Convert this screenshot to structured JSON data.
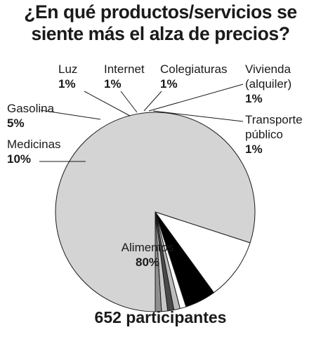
{
  "title_lines": [
    "¿En qué productos/servicios se",
    "siente más el alza de precios?"
  ],
  "footer": "652 participantes",
  "chart_data": {
    "type": "pie",
    "title": "¿En qué productos/servicios se siente más el alza de precios?",
    "slices": [
      {
        "label": [
          "Alimentos"
        ],
        "value_label": "80%",
        "value": 80,
        "color": "#d4d4d4"
      },
      {
        "label": [
          "Medicinas"
        ],
        "value_label": "10%",
        "value": 10,
        "color": "#ffffff"
      },
      {
        "label": [
          "Gasolina"
        ],
        "value_label": "5%",
        "value": 5,
        "color": "#000000"
      },
      {
        "label": [
          "Luz"
        ],
        "value_label": "1%",
        "value": 1,
        "color": "#ffffff"
      },
      {
        "label": [
          "Internet"
        ],
        "value_label": "1%",
        "value": 1,
        "color": "#bdbdbd"
      },
      {
        "label": [
          "Colegiaturas"
        ],
        "value_label": "1%",
        "value": 1,
        "color": "#4a4a4a"
      },
      {
        "label": [
          "Vivienda",
          "(alquiler)"
        ],
        "value_label": "1%",
        "value": 1,
        "color": "#c8c8c8"
      },
      {
        "label": [
          "Transporte",
          "público"
        ],
        "value_label": "1%",
        "value": 1,
        "color": "#8f8f8f"
      }
    ],
    "note": "652 participantes"
  }
}
